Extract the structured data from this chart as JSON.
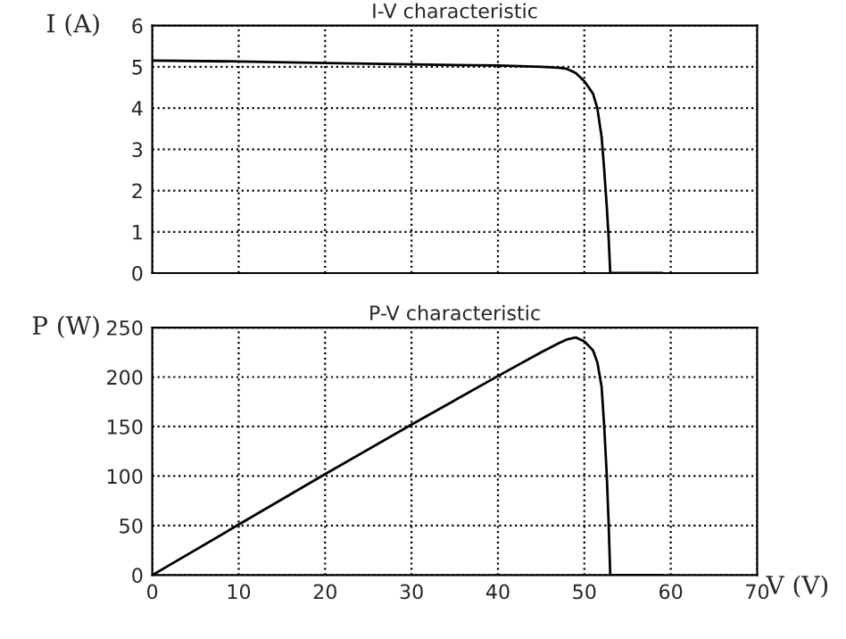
{
  "chart_data": [
    {
      "type": "line",
      "title": "I-V characteristic",
      "ylabel": "I (A)",
      "xlim": [
        0,
        70
      ],
      "xticks": [
        0,
        10,
        20,
        30,
        40,
        50,
        60,
        70
      ],
      "ylim": [
        0,
        6
      ],
      "yticks": [
        0,
        1,
        2,
        3,
        4,
        5,
        6
      ],
      "tick_labels": "y",
      "grid": true,
      "line_style": "solid",
      "series": [
        {
          "color": "#000000",
          "x": [
            0,
            10,
            20,
            30,
            40,
            45,
            47,
            48,
            49,
            50,
            51,
            51.5,
            52,
            52.3,
            52.6,
            52.8,
            53,
            59
          ],
          "values": [
            5.15,
            5.13,
            5.09,
            5.06,
            5.03,
            5.0,
            4.98,
            4.95,
            4.85,
            4.65,
            4.35,
            4.0,
            3.3,
            2.5,
            1.6,
            0.9,
            0,
            0
          ]
        }
      ]
    },
    {
      "type": "line",
      "title": "P-V characteristic",
      "ylabel": "P (W)",
      "xlabel": "V (V)",
      "xlim": [
        0,
        70
      ],
      "xticks": [
        0,
        10,
        20,
        30,
        40,
        50,
        60,
        70
      ],
      "ylim": [
        0,
        250
      ],
      "yticks": [
        0,
        50,
        100,
        150,
        200,
        250
      ],
      "grid": true,
      "line_style": "solid",
      "series": [
        {
          "color": "#000000",
          "x": [
            0,
            10,
            20,
            30,
            40,
            45,
            47,
            48,
            49,
            50,
            51,
            51.5,
            52,
            52.3,
            52.6,
            52.8,
            53,
            59
          ],
          "values": [
            0,
            51,
            102,
            152,
            201,
            225,
            234,
            238,
            240,
            236,
            227,
            215,
            190,
            150,
            100,
            55,
            0,
            0
          ]
        }
      ]
    }
  ]
}
